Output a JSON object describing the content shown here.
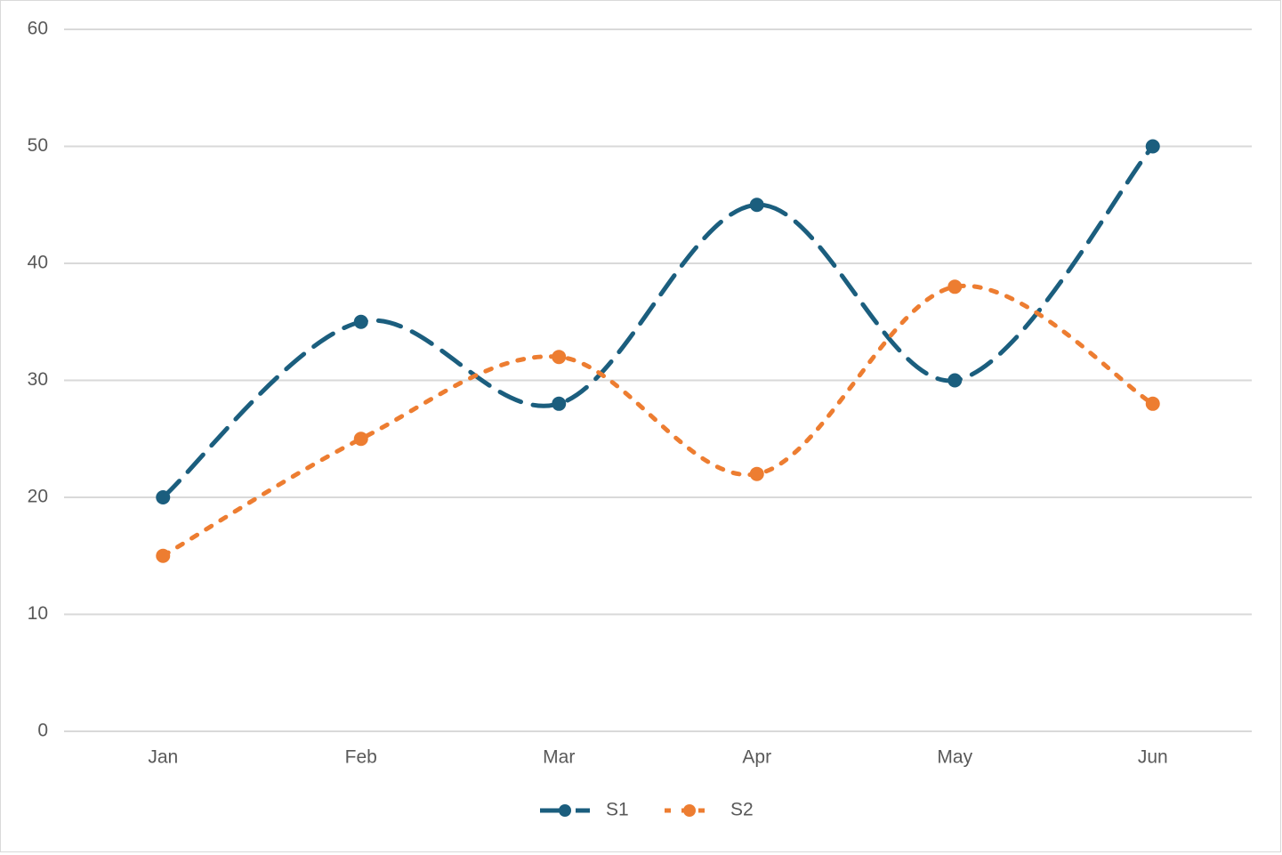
{
  "chart_data": {
    "type": "line",
    "smooth": true,
    "categories": [
      "Jan",
      "Feb",
      "Mar",
      "Apr",
      "May",
      "Jun"
    ],
    "series": [
      {
        "name": "S1",
        "color": "#1b5e7e",
        "dash": "dashed",
        "values": [
          20,
          35,
          28,
          45,
          30,
          50
        ]
      },
      {
        "name": "S2",
        "color": "#ed7d31",
        "dash": "dotted",
        "values": [
          15,
          25,
          32,
          22,
          38,
          28
        ]
      }
    ],
    "ylim": [
      0,
      60
    ],
    "yticks": [
      0,
      10,
      20,
      30,
      40,
      50,
      60
    ],
    "grid": true,
    "legend": "bottom"
  }
}
